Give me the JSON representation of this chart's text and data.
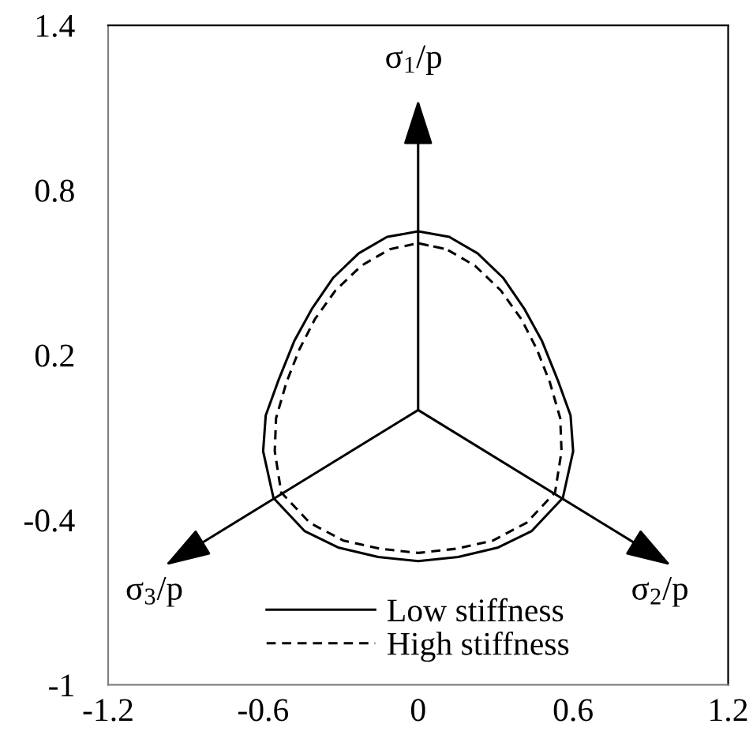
{
  "chart_data": {
    "type": "line",
    "xlim": [
      -1.2,
      1.2
    ],
    "ylim": [
      -1,
      1.4
    ],
    "xticks": [
      -1.2,
      -0.6,
      0,
      0.6,
      1.2
    ],
    "yticks": [
      -1,
      -0.4,
      0.2,
      0.8,
      1.4
    ],
    "legend": "bottom",
    "series": [
      {
        "name": "Low stiffness",
        "color": "#000000",
        "line_style": "solid",
        "x": [
          0,
          0.12,
          0.23,
          0.33,
          0.41,
          0.48,
          0.54,
          0.59,
          0.6,
          0.56,
          0.44,
          0.31,
          0.155,
          0,
          -0.155,
          -0.31,
          -0.44,
          -0.56,
          -0.6,
          -0.59,
          -0.54,
          -0.48,
          -0.41,
          -0.33,
          -0.23,
          -0.12,
          0,
          0.12
        ],
        "values": [
          0.65,
          0.63,
          0.57,
          0.48,
          0.37,
          0.25,
          0.11,
          -0.02,
          -0.15,
          -0.32,
          -0.44,
          -0.5,
          -0.535,
          -0.55,
          -0.535,
          -0.5,
          -0.44,
          -0.32,
          -0.15,
          -0.02,
          0.11,
          0.25,
          0.37,
          0.48,
          0.57,
          0.63,
          0.65,
          0.63
        ]
      },
      {
        "name": "High stiffness",
        "color": "#000000",
        "line_style": "dashed",
        "x": [
          0,
          0.11,
          0.22,
          0.32,
          0.4,
          0.46,
          0.51,
          0.55,
          0.555,
          0.53,
          0.42,
          0.29,
          0.145,
          0,
          -0.145,
          -0.29,
          -0.42,
          -0.53,
          -0.555,
          -0.55,
          -0.51,
          -0.46,
          -0.4,
          -0.32,
          -0.22,
          -0.11,
          0,
          0.11
        ],
        "values": [
          0.607,
          0.585,
          0.525,
          0.435,
          0.33,
          0.22,
          0.1,
          -0.03,
          -0.15,
          -0.3,
          -0.41,
          -0.475,
          -0.505,
          -0.52,
          -0.505,
          -0.475,
          -0.41,
          -0.3,
          -0.15,
          -0.03,
          0.1,
          0.22,
          0.33,
          0.435,
          0.525,
          0.585,
          0.607,
          0.585
        ]
      }
    ],
    "annotations": [
      "σ$_{1}$/p",
      "σ$_{2}$/p",
      "σ$_{3}$/p"
    ]
  }
}
